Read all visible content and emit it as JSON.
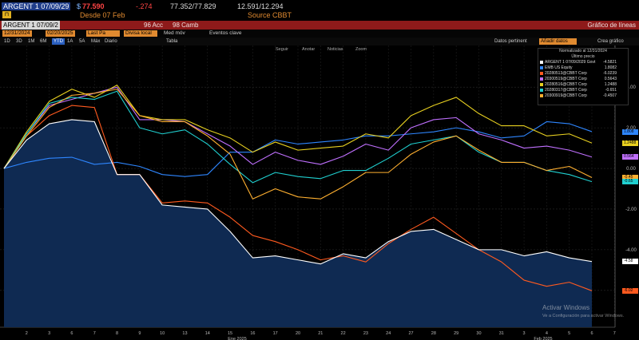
{
  "header": {
    "ticker": "ARGENT 1 07/09/29",
    "price_prefix": "$",
    "price": "77.590",
    "change": "-.274",
    "bid_ask": "77.352/77.829",
    "yield": "12.591/12.294",
    "since": "Desde 07 Feb",
    "source": "Source CBBT"
  },
  "toolbar": {
    "security_field": "ARGENT 1 07/09/2",
    "actions_label": "96 Acc",
    "change_label": "98 Camb",
    "title": "Gráfico de líneas"
  },
  "options": {
    "start_date": "12/31/2024",
    "end_date": "02/20/2025",
    "last_price": "Last Pa",
    "local_currency": "Divisa local",
    "avg_label": "Med móv",
    "key_events": "Eventos clave",
    "pertinent_data": "Datos pertinent",
    "add_data": "Añadir datos",
    "chart_label": "Crea gráfico"
  },
  "periods": [
    "1D",
    "3D",
    "1M",
    "6M",
    "YTD",
    "1A",
    "5A",
    "Máx",
    "Diario"
  ],
  "active_period": "YTD",
  "mini_labels": [
    "Tabla"
  ],
  "plot_nav": [
    "Seguir",
    "Anotar",
    "Noticias",
    "Zoom"
  ],
  "legend": {
    "header": "Normalizado al 12/31/2024",
    "subheader": "Último precio",
    "items": [
      {
        "name": "ARGENT 1 07/09/2029 Govt",
        "value": "-4.5821",
        "color": "#ffffff"
      },
      {
        "name": "EMB US Equity",
        "value": "1.8082",
        "color": "#2e86ff"
      },
      {
        "name": "20280513@CBBT Corp",
        "value": "-6.0239",
        "color": "#ff5a1f"
      },
      {
        "name": "20300519@CBBT Corp",
        "value": "0.5643",
        "color": "#c070ff"
      },
      {
        "name": "20280516@CBBT Corp",
        "value": "1.2488",
        "color": "#e8d020"
      },
      {
        "name": "20280317@CBBT Corp",
        "value": "-0.651",
        "color": "#20d0d0"
      },
      {
        "name": "20300919@CBBT Corp",
        "value": "-0.4507",
        "color": "#ffb030"
      }
    ]
  },
  "right_tags": [
    {
      "text": "1.808",
      "color": "#2e86ff"
    },
    {
      "text": "1.2488",
      "color": "#e8d020"
    },
    {
      "text": "0.564",
      "color": "#c070ff"
    },
    {
      "text": "-0.45",
      "color": "#ffb030"
    },
    {
      "text": "-0.65",
      "color": "#20d0d0"
    },
    {
      "text": "-6.02",
      "color": "#ff5a1f"
    },
    {
      "text": "-4.58",
      "color": "#ffffff"
    }
  ],
  "watermark": {
    "line1": "Activar Windows",
    "line2": "Ve a Configuración para activar Windows."
  },
  "chart_data": {
    "type": "area",
    "ylim": [
      -7.5,
      5.5
    ],
    "yticks": [
      "4.00",
      "2.00",
      "0.00",
      "-2.00",
      "-4.00",
      "-6.00"
    ],
    "x": [
      "2",
      "3",
      "6",
      "7",
      "8",
      "9",
      "10",
      "13",
      "14",
      "15",
      "16",
      "17",
      "20",
      "21",
      "22",
      "23",
      "24",
      "27",
      "28",
      "29",
      "30",
      "31",
      "3",
      "4",
      "5",
      "6",
      "7"
    ],
    "x_ticks": [
      "2",
      "3",
      "6",
      "7",
      "8",
      "9",
      "10",
      "13",
      "14",
      "15",
      "16",
      "17",
      "20",
      "21",
      "22",
      "23",
      "24",
      "27",
      "28",
      "29",
      "30",
      "31",
      "3",
      "4",
      "5",
      "6",
      "7",
      "10"
    ],
    "month_labels": [
      "Ene 2025",
      "Feb 2025"
    ],
    "series": [
      {
        "name": "ARGENT 1 07/09/2029 Govt",
        "color": "#ffffff",
        "values": [
          0,
          1.4,
          2.2,
          2.4,
          2.3,
          -0.3,
          -0.3,
          -1.8,
          -1.9,
          -2.0,
          -3.1,
          -4.4,
          -4.3,
          -4.5,
          -4.7,
          -4.2,
          -4.4,
          -3.6,
          -3.1,
          -3.0,
          -3.5,
          -4.0,
          -4.0,
          -4.3,
          -4.1,
          -4.4,
          -4.58
        ]
      },
      {
        "name": "EMB US Equity",
        "color": "#2e86ff",
        "values": [
          0,
          0.3,
          0.5,
          0.55,
          0.2,
          0.3,
          0.1,
          -0.3,
          -0.4,
          -0.3,
          0.8,
          0.8,
          1.4,
          1.2,
          1.3,
          1.4,
          1.6,
          1.6,
          1.7,
          1.8,
          2.0,
          1.8,
          1.5,
          1.6,
          2.3,
          2.2,
          1.81
        ]
      },
      {
        "name": "20280513@CBBT Corp",
        "color": "#ff5a1f",
        "values": [
          0,
          1.6,
          2.6,
          3.1,
          3.0,
          -0.3,
          -0.3,
          -1.7,
          -1.6,
          -1.7,
          -2.4,
          -3.3,
          -3.6,
          -4.0,
          -4.5,
          -4.3,
          -4.6,
          -3.7,
          -3.0,
          -2.4,
          -3.2,
          -4.0,
          -4.6,
          -5.5,
          -5.8,
          -5.6,
          -6.02
        ]
      },
      {
        "name": "20300519@CBBT Corp",
        "color": "#c070ff",
        "values": [
          0,
          1.7,
          3.1,
          3.4,
          3.7,
          4.0,
          2.4,
          2.4,
          2.3,
          1.7,
          1.1,
          0.2,
          0.8,
          0.4,
          0.2,
          0.6,
          1.2,
          0.9,
          2.0,
          2.4,
          2.5,
          1.7,
          1.4,
          1.0,
          1.1,
          0.9,
          0.56
        ]
      },
      {
        "name": "20280516@CBBT Corp",
        "color": "#e8d020",
        "values": [
          0,
          1.8,
          3.3,
          3.9,
          3.5,
          4.1,
          2.6,
          2.4,
          2.4,
          1.9,
          1.5,
          0.8,
          1.3,
          0.9,
          1.0,
          1.1,
          1.7,
          1.5,
          2.6,
          3.1,
          3.5,
          2.7,
          2.1,
          2.1,
          1.6,
          1.7,
          1.25
        ]
      },
      {
        "name": "20280317@CBBT Corp",
        "color": "#20d0d0",
        "values": [
          0,
          1.7,
          3.2,
          3.5,
          3.4,
          3.8,
          2.0,
          1.7,
          1.9,
          1.2,
          0.2,
          -0.7,
          -0.2,
          -0.4,
          -0.5,
          -0.1,
          -0.1,
          0.5,
          1.2,
          1.4,
          1.6,
          0.8,
          0.3,
          0.3,
          -0.1,
          -0.3,
          -0.65
        ]
      },
      {
        "name": "20300919@CBBT Corp",
        "color": "#ffb030",
        "values": [
          0,
          1.6,
          3.0,
          3.6,
          3.7,
          3.9,
          2.6,
          2.3,
          2.3,
          1.6,
          0.7,
          -1.5,
          -1.0,
          -1.4,
          -1.5,
          -0.9,
          -0.2,
          -0.2,
          0.7,
          1.3,
          1.6,
          0.9,
          0.3,
          0.3,
          -0.1,
          0.1,
          -0.45
        ]
      }
    ]
  }
}
